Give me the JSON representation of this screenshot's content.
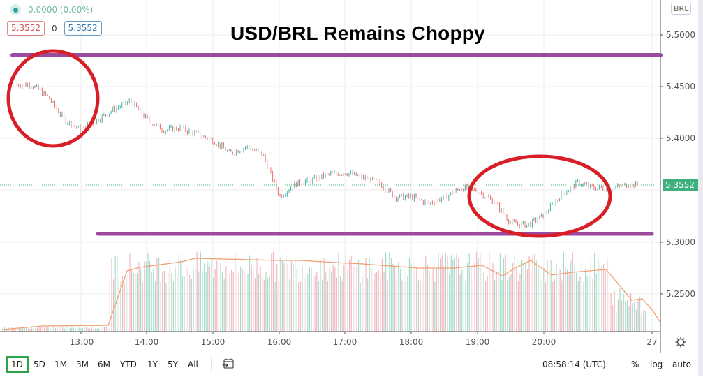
{
  "header": {
    "change": "0.0000 (0.00%)",
    "bid": "5.3552",
    "spread": "0",
    "ask": "5.3552",
    "status_dot_color": "#26a69a"
  },
  "title": "USD/BRL Remains Choppy",
  "price_axis": {
    "currency": "BRL",
    "labels": [
      "5.5000",
      "5.4500",
      "5.4000",
      "5.3000",
      "5.2500"
    ],
    "last_price": "5.3552",
    "last_price_color": "#3db07e"
  },
  "time_axis": {
    "labels": [
      "13:00",
      "14:00",
      "15:00",
      "16:00",
      "17:00",
      "18:00",
      "19:00",
      "20:00",
      "27"
    ]
  },
  "toolbar": {
    "ranges": [
      "1D",
      "5D",
      "1M",
      "3M",
      "6M",
      "YTD",
      "1Y",
      "5Y",
      "All"
    ],
    "active_range": "1D",
    "timezone": "08:58:14 (UTC)",
    "percent": "%",
    "log": "log",
    "auto": "auto"
  },
  "chart_data": {
    "type": "line",
    "title": "USD/BRL Remains Choppy",
    "xlabel": "",
    "ylabel": "BRL",
    "ylim": [
      5.22,
      5.52
    ],
    "grid": true,
    "x": [
      "12:15",
      "12:30",
      "12:45",
      "13:00",
      "13:15",
      "13:30",
      "13:45",
      "14:00",
      "14:15",
      "14:30",
      "14:45",
      "15:00",
      "15:15",
      "15:30",
      "15:45",
      "16:00",
      "16:15",
      "16:30",
      "16:45",
      "17:00",
      "17:15",
      "17:30",
      "17:45",
      "18:00",
      "18:15",
      "18:30",
      "18:45",
      "19:00",
      "19:15",
      "19:30",
      "19:45",
      "20:00",
      "20:15",
      "20:30",
      "20:45",
      "21:00",
      "21:15"
    ],
    "series": [
      {
        "name": "USD/BRL price",
        "values": [
          5.452,
          5.44,
          5.418,
          5.408,
          5.418,
          5.428,
          5.436,
          5.418,
          5.408,
          5.41,
          5.404,
          5.398,
          5.385,
          5.392,
          5.384,
          5.344,
          5.356,
          5.36,
          5.365,
          5.367,
          5.362,
          5.357,
          5.343,
          5.343,
          5.337,
          5.343,
          5.352,
          5.349,
          5.338,
          5.318,
          5.316,
          5.326,
          5.345,
          5.357,
          5.352,
          5.351,
          5.355
        ]
      }
    ],
    "annotations": {
      "resistance_line": 5.48,
      "support_line": 5.308,
      "resistance_color": "#9b4a9e",
      "circle_color": "#d81e26",
      "circles": [
        "12:15-13:15 decline",
        "19:00-21:00 dip and recovery"
      ]
    },
    "volume": {
      "moving_average_color": "#f0a070",
      "bar_colors": [
        "#f5b8bf",
        "#a8dccc"
      ],
      "note": "Low volume before ~13:25, then elevated through session, declining after ~20:45"
    },
    "last_price": 5.3552
  }
}
